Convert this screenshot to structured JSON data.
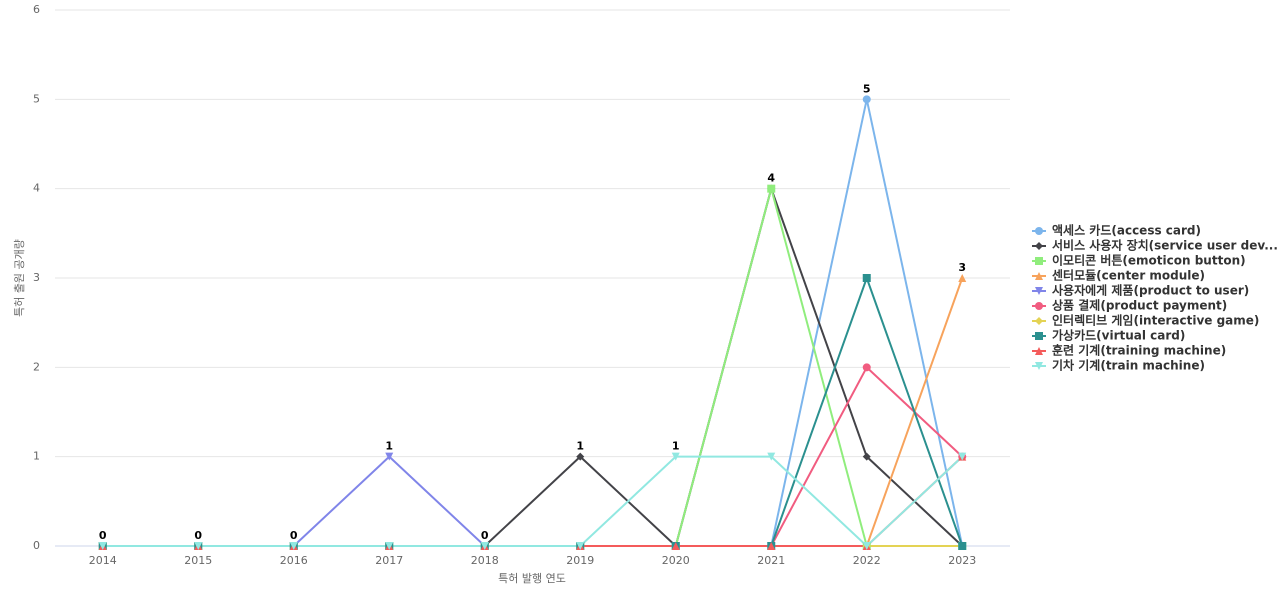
{
  "chart_data": {
    "type": "line",
    "x_label": "특허 발행 연도",
    "y_label": "특허 출원 공개량",
    "categories": [
      "2014",
      "2015",
      "2016",
      "2017",
      "2018",
      "2019",
      "2020",
      "2021",
      "2022",
      "2023"
    ],
    "ylim": [
      0,
      6
    ],
    "yticks": [
      0,
      1,
      2,
      3,
      4,
      5,
      6
    ],
    "grid": true,
    "series": [
      {
        "name": "액세스 카드(access card)",
        "color": "#7cb5ec",
        "values": [
          0,
          0,
          0,
          0,
          0,
          0,
          0,
          0,
          5,
          0
        ]
      },
      {
        "name": "서비스 사용자 장치(service user dev...",
        "color": "#434348",
        "values": [
          0,
          0,
          0,
          0,
          0,
          1,
          0,
          4,
          1,
          0
        ]
      },
      {
        "name": "이모티콘 버튼(emoticon button)",
        "color": "#90ed7d",
        "values": [
          0,
          0,
          0,
          0,
          0,
          0,
          0,
          4,
          0,
          0
        ]
      },
      {
        "name": "센터모듈(center module)",
        "color": "#f7a35c",
        "values": [
          0,
          0,
          0,
          0,
          0,
          0,
          0,
          0,
          0,
          3
        ]
      },
      {
        "name": "사용자에게 제품(product to user)",
        "color": "#8085e9",
        "values": [
          0,
          0,
          0,
          1,
          0,
          0,
          0,
          0,
          0,
          0
        ]
      },
      {
        "name": "상품 결제(product payment)",
        "color": "#f15c80",
        "values": [
          0,
          0,
          0,
          0,
          0,
          0,
          0,
          0,
          2,
          1
        ]
      },
      {
        "name": "인터렉티브 게임(interactive game)",
        "color": "#e4d354",
        "values": [
          0,
          0,
          0,
          0,
          0,
          0,
          0,
          0,
          0,
          0
        ]
      },
      {
        "name": "가상카드(virtual card)",
        "color": "#2b908f",
        "values": [
          0,
          0,
          0,
          0,
          0,
          0,
          0,
          0,
          3,
          0
        ]
      },
      {
        "name": "훈련 기계(training machine)",
        "color": "#f45b5b",
        "values": [
          0,
          0,
          0,
          0,
          0,
          0,
          0,
          0,
          0,
          1
        ]
      },
      {
        "name": "기차 기계(train machine)",
        "color": "#91e8e1",
        "values": [
          0,
          0,
          0,
          0,
          0,
          0,
          1,
          1,
          0,
          1
        ]
      }
    ]
  }
}
